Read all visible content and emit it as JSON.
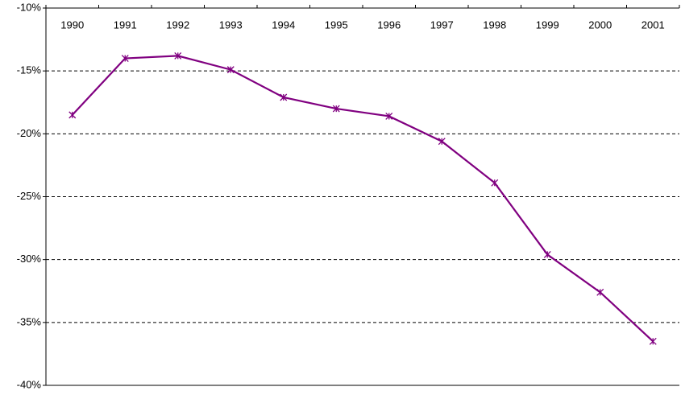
{
  "chart_data": {
    "type": "line",
    "categories": [
      "1990",
      "1991",
      "1992",
      "1993",
      "1994",
      "1995",
      "1996",
      "1997",
      "1998",
      "1999",
      "2000",
      "2001"
    ],
    "values": [
      -18.5,
      -14.0,
      -13.8,
      -14.9,
      -17.1,
      -18.0,
      -18.6,
      -20.6,
      -23.9,
      -29.6,
      -32.6,
      -36.5
    ],
    "color": "#800080",
    "ylim": [
      -40,
      -10
    ],
    "yticks": [
      {
        "value": -40,
        "label": "-40%"
      },
      {
        "value": -35,
        "label": "-35%"
      },
      {
        "value": -30,
        "label": "-30%"
      },
      {
        "value": -25,
        "label": "-25%"
      },
      {
        "value": -20,
        "label": "-20%"
      },
      {
        "value": -15,
        "label": "-15%"
      },
      {
        "value": -10,
        "label": "-10%"
      }
    ],
    "grid": true
  }
}
